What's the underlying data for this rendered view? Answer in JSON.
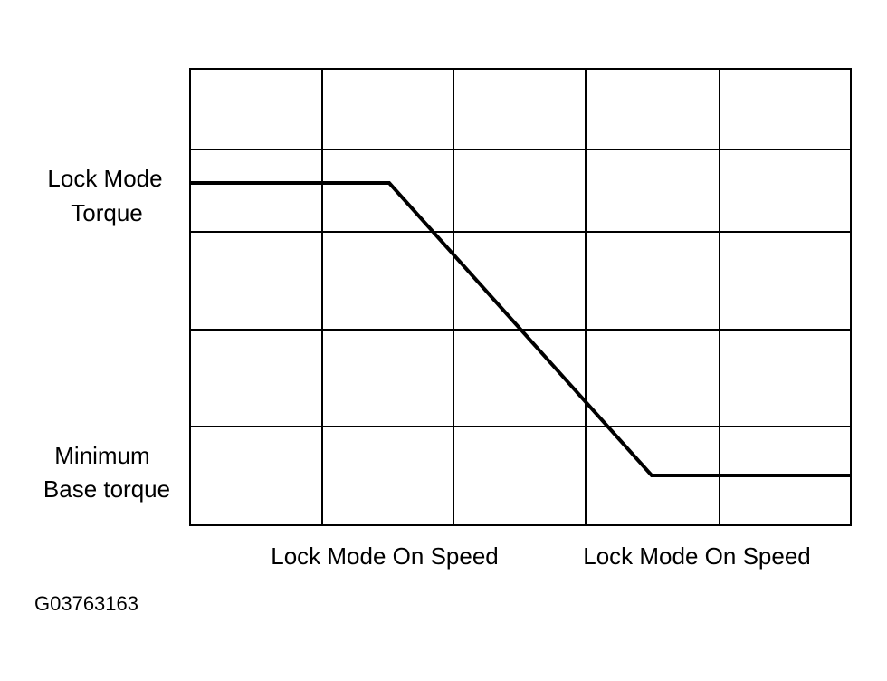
{
  "y_labels": {
    "top": [
      "Lock Mode",
      "Torque"
    ],
    "bottom": [
      "Minimum",
      "Base torque"
    ]
  },
  "x_labels": [
    "Lock Mode On Speed",
    "Lock Mode On Speed"
  ],
  "figure_id": "G03763163"
}
